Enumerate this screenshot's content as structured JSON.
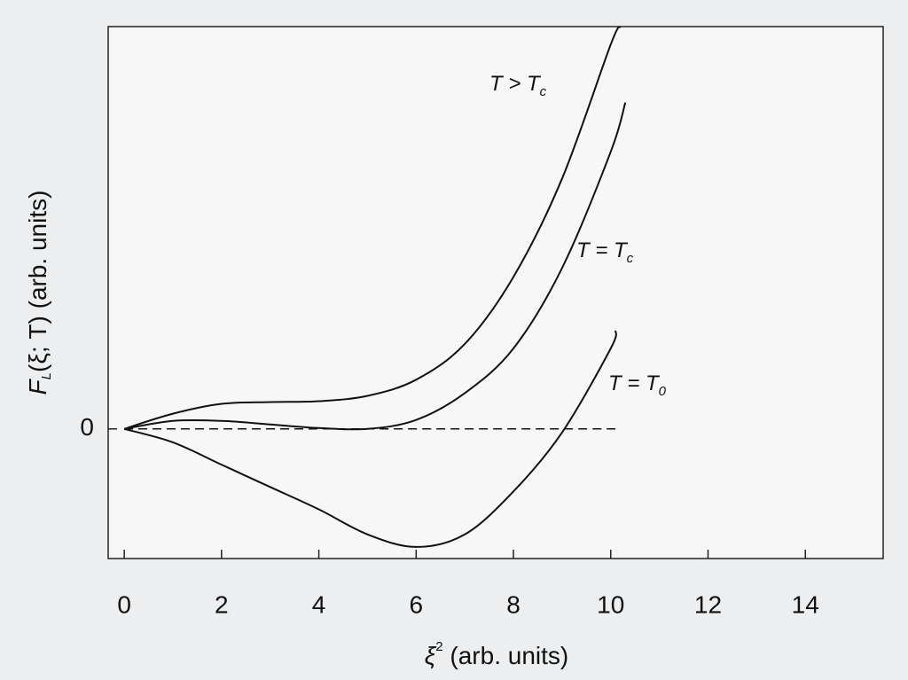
{
  "chart_data": {
    "type": "line",
    "x_label": [
      "ξ",
      "2",
      " (arb. units)"
    ],
    "y_label": [
      "F",
      "L",
      "(ξ; T) (arb. units)"
    ],
    "xlim": [
      -0.33,
      15.6
    ],
    "ylim": [
      -2.9,
      9
    ],
    "xticks": [
      0,
      2,
      4,
      6,
      8,
      10,
      12,
      14
    ],
    "yticks": [
      0
    ],
    "grid": false,
    "series": [
      {
        "name": "T > T",
        "name_sub": "c",
        "color": "#111111",
        "x": [
          0,
          1,
          2,
          3,
          4,
          5,
          6,
          7,
          8,
          9,
          10,
          10.2
        ],
        "values": [
          0,
          0.34,
          0.56,
          0.6,
          0.62,
          0.74,
          1.1,
          1.9,
          3.4,
          5.6,
          8.6,
          9.0
        ]
      },
      {
        "name": "T = T",
        "name_sub": "c",
        "color": "#111111",
        "x": [
          0,
          1,
          2,
          3,
          4,
          5,
          6,
          7,
          8,
          9,
          10,
          10.3
        ],
        "values": [
          0,
          0.18,
          0.18,
          0.1,
          0.02,
          0,
          0.2,
          0.8,
          1.8,
          3.6,
          6.2,
          7.3
        ]
      },
      {
        "name": "T = T",
        "name_sub": "0",
        "color": "#111111",
        "x": [
          0,
          1,
          2,
          3,
          4,
          5,
          6,
          7,
          8,
          9,
          10,
          10.1
        ],
        "values": [
          0,
          -0.3,
          -0.8,
          -1.3,
          -1.8,
          -2.36,
          -2.64,
          -2.36,
          -1.4,
          -0.08,
          1.8,
          2.2
        ]
      },
      {
        "color": "#111111",
        "dash": true,
        "x": [
          0,
          10.1
        ],
        "values": [
          0,
          0
        ]
      }
    ]
  }
}
